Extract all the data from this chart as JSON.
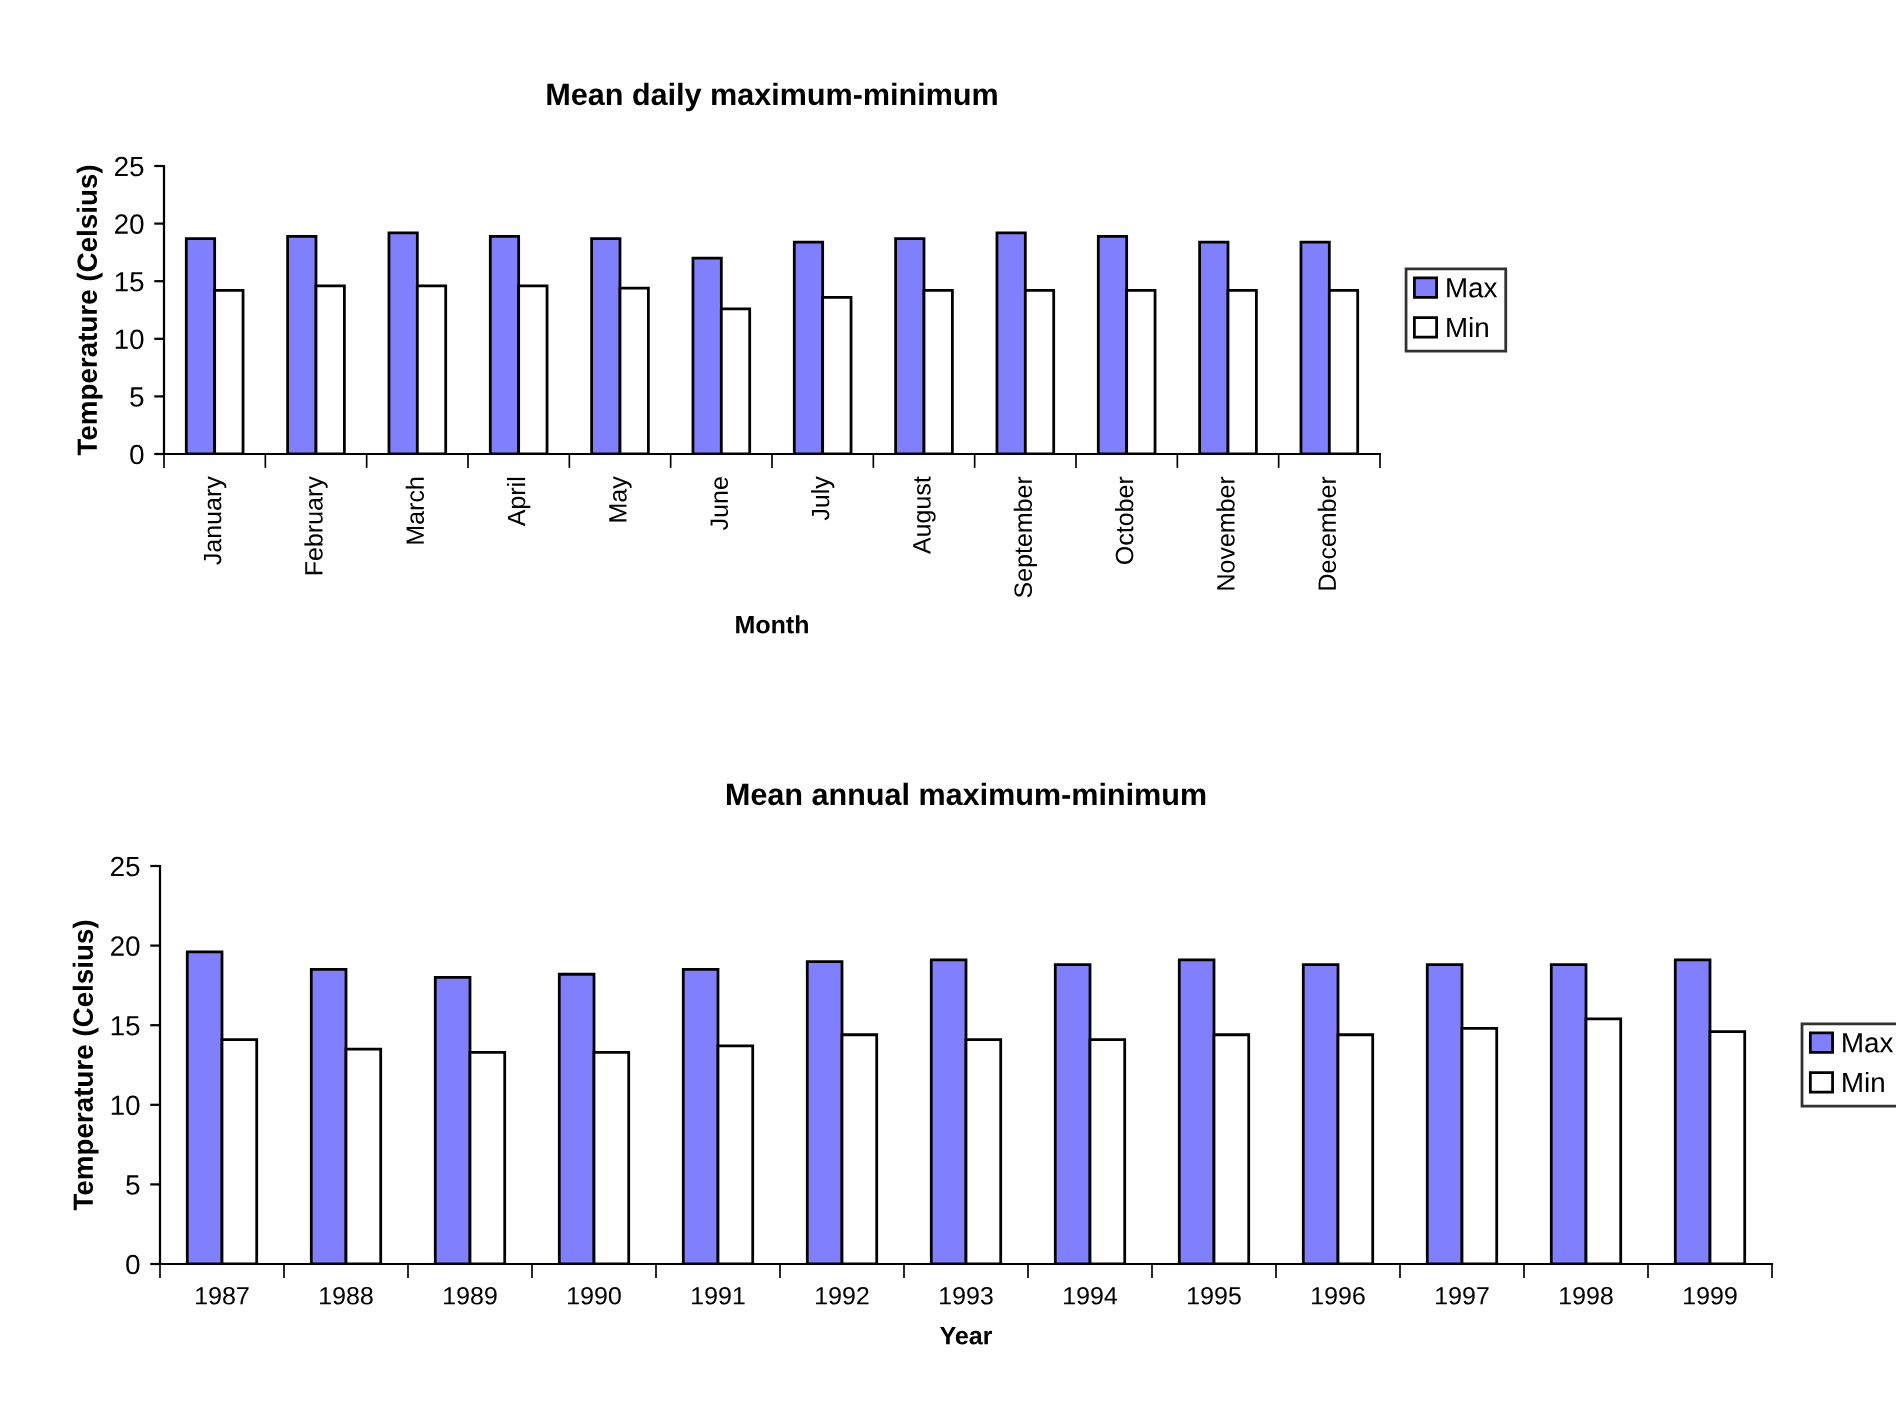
{
  "chart_data": [
    {
      "type": "bar",
      "title": "Mean daily maximum-minimum",
      "xlabel": "Month",
      "ylabel": "Temperature (Celsius)",
      "categories": [
        "January",
        "February",
        "March",
        "April",
        "May",
        "June",
        "July",
        "August",
        "September",
        "October",
        "November",
        "December"
      ],
      "series": [
        {
          "name": "Max",
          "color": "#8080ff",
          "values": [
            18.7,
            18.9,
            19.2,
            18.9,
            18.7,
            17.0,
            18.4,
            18.7,
            19.2,
            18.9,
            18.4,
            18.4
          ]
        },
        {
          "name": "Min",
          "color": "#ffffff",
          "values": [
            14.2,
            14.6,
            14.6,
            14.6,
            14.4,
            12.6,
            13.6,
            14.2,
            14.2,
            14.2,
            14.2,
            14.2
          ]
        }
      ],
      "ylim": [
        0,
        25
      ],
      "yticks": [
        0,
        5,
        10,
        15,
        20,
        25
      ],
      "grid": false,
      "legend": "right"
    },
    {
      "type": "bar",
      "title": "Mean annual maximum-minimum",
      "xlabel": "Year",
      "ylabel": "Temperature (Celsius)",
      "categories": [
        "1987",
        "1988",
        "1989",
        "1990",
        "1991",
        "1992",
        "1993",
        "1994",
        "1995",
        "1996",
        "1997",
        "1998",
        "1999"
      ],
      "series": [
        {
          "name": "Max",
          "color": "#8080ff",
          "values": [
            19.6,
            18.5,
            18.0,
            18.2,
            18.5,
            19.0,
            19.1,
            18.8,
            19.1,
            18.8,
            18.8,
            18.8,
            19.1
          ]
        },
        {
          "name": "Min",
          "color": "#ffffff",
          "values": [
            14.1,
            13.5,
            13.3,
            13.3,
            13.7,
            14.4,
            14.1,
            14.1,
            14.4,
            14.4,
            14.8,
            15.4,
            14.6
          ]
        }
      ],
      "ylim": [
        0,
        25
      ],
      "yticks": [
        0,
        5,
        10,
        15,
        20,
        25
      ],
      "grid": false,
      "legend": "right"
    }
  ]
}
